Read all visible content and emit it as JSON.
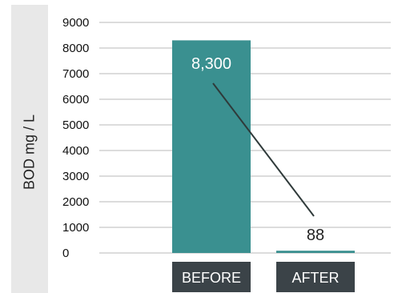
{
  "chart_data": {
    "type": "bar",
    "title": "",
    "xlabel": "",
    "ylabel": "BOD mg / L",
    "categories": [
      "BEFORE",
      "AFTER"
    ],
    "values": [
      8300,
      88
    ],
    "data_labels": [
      "8,300",
      "88"
    ],
    "ylim": [
      0,
      9000
    ],
    "yticks": [
      0,
      1000,
      2000,
      3000,
      4000,
      5000,
      6000,
      7000,
      8000,
      9000
    ],
    "grid": true,
    "legend": "none",
    "trend_line": true,
    "colors": {
      "bar": "#3a9090",
      "grid": "#b8b8b8",
      "category_box": "#3b4348",
      "trend_line": "#2f3a3a",
      "label_inside": "#ffffff",
      "label_outside": "#222222"
    }
  }
}
